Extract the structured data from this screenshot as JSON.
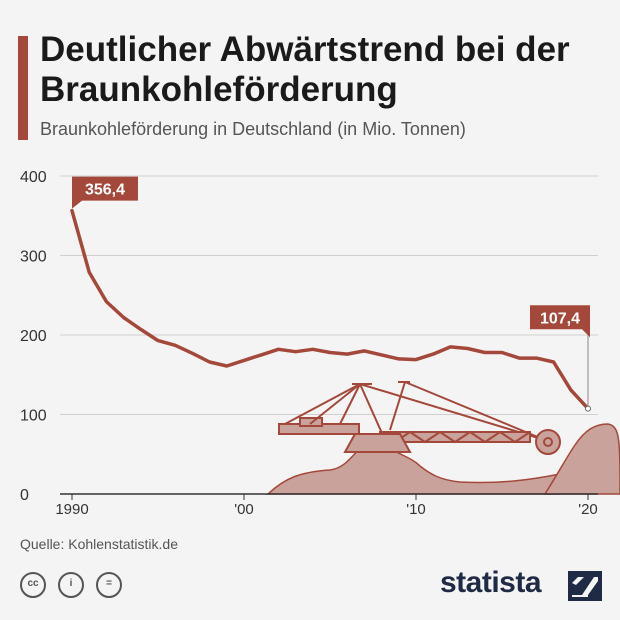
{
  "header": {
    "title": "Deutlicher Abwärtstrend bei der Braunkohleförderung",
    "subtitle": "Braunkohleförderung in Deutschland (in Mio. Tonnen)"
  },
  "footer": {
    "source": "Quelle: Kohlenstatistik.de",
    "brand": "statista",
    "license_icons": [
      "cc-icon",
      "by-icon",
      "nd-icon"
    ]
  },
  "colors": {
    "accent": "#a3483a",
    "line": "#a3483a",
    "grid": "#cfcfcf",
    "illustration_fill": "#c9a39b",
    "illustration_stroke": "#a3483a"
  },
  "chart_data": {
    "type": "line",
    "title": "Deutlicher Abwärtstrend bei der Braunkohleförderung",
    "subtitle": "Braunkohleförderung in Deutschland (in Mio. Tonnen)",
    "x": [
      1990,
      1991,
      1992,
      1993,
      1994,
      1995,
      1996,
      1997,
      1998,
      1999,
      2000,
      2001,
      2002,
      2003,
      2004,
      2005,
      2006,
      2007,
      2008,
      2009,
      2010,
      2011,
      2012,
      2013,
      2014,
      2015,
      2016,
      2017,
      2018,
      2019,
      2020
    ],
    "series": [
      {
        "values": [
          356.4,
          279,
          242,
          222,
          207,
          193,
          187,
          177,
          166,
          161,
          168,
          175,
          182,
          179,
          182,
          178,
          176,
          180,
          175,
          170,
          169,
          176,
          185,
          183,
          178,
          178,
          171,
          171,
          166,
          131,
          107.4
        ]
      }
    ],
    "xticks": [
      1990,
      2000,
      2010,
      2020
    ],
    "xtick_labels": [
      "1990",
      "'00",
      "'10",
      "'20"
    ],
    "yticks": [
      0,
      100,
      200,
      300,
      400
    ],
    "ylim": [
      0,
      400
    ],
    "xlim": [
      1990,
      2020
    ],
    "grid": true,
    "annotations": [
      {
        "x": 1990,
        "y": 356.4,
        "label": "356,4"
      },
      {
        "x": 2020,
        "y": 107.4,
        "label": "107,4"
      }
    ],
    "legend": "none"
  }
}
